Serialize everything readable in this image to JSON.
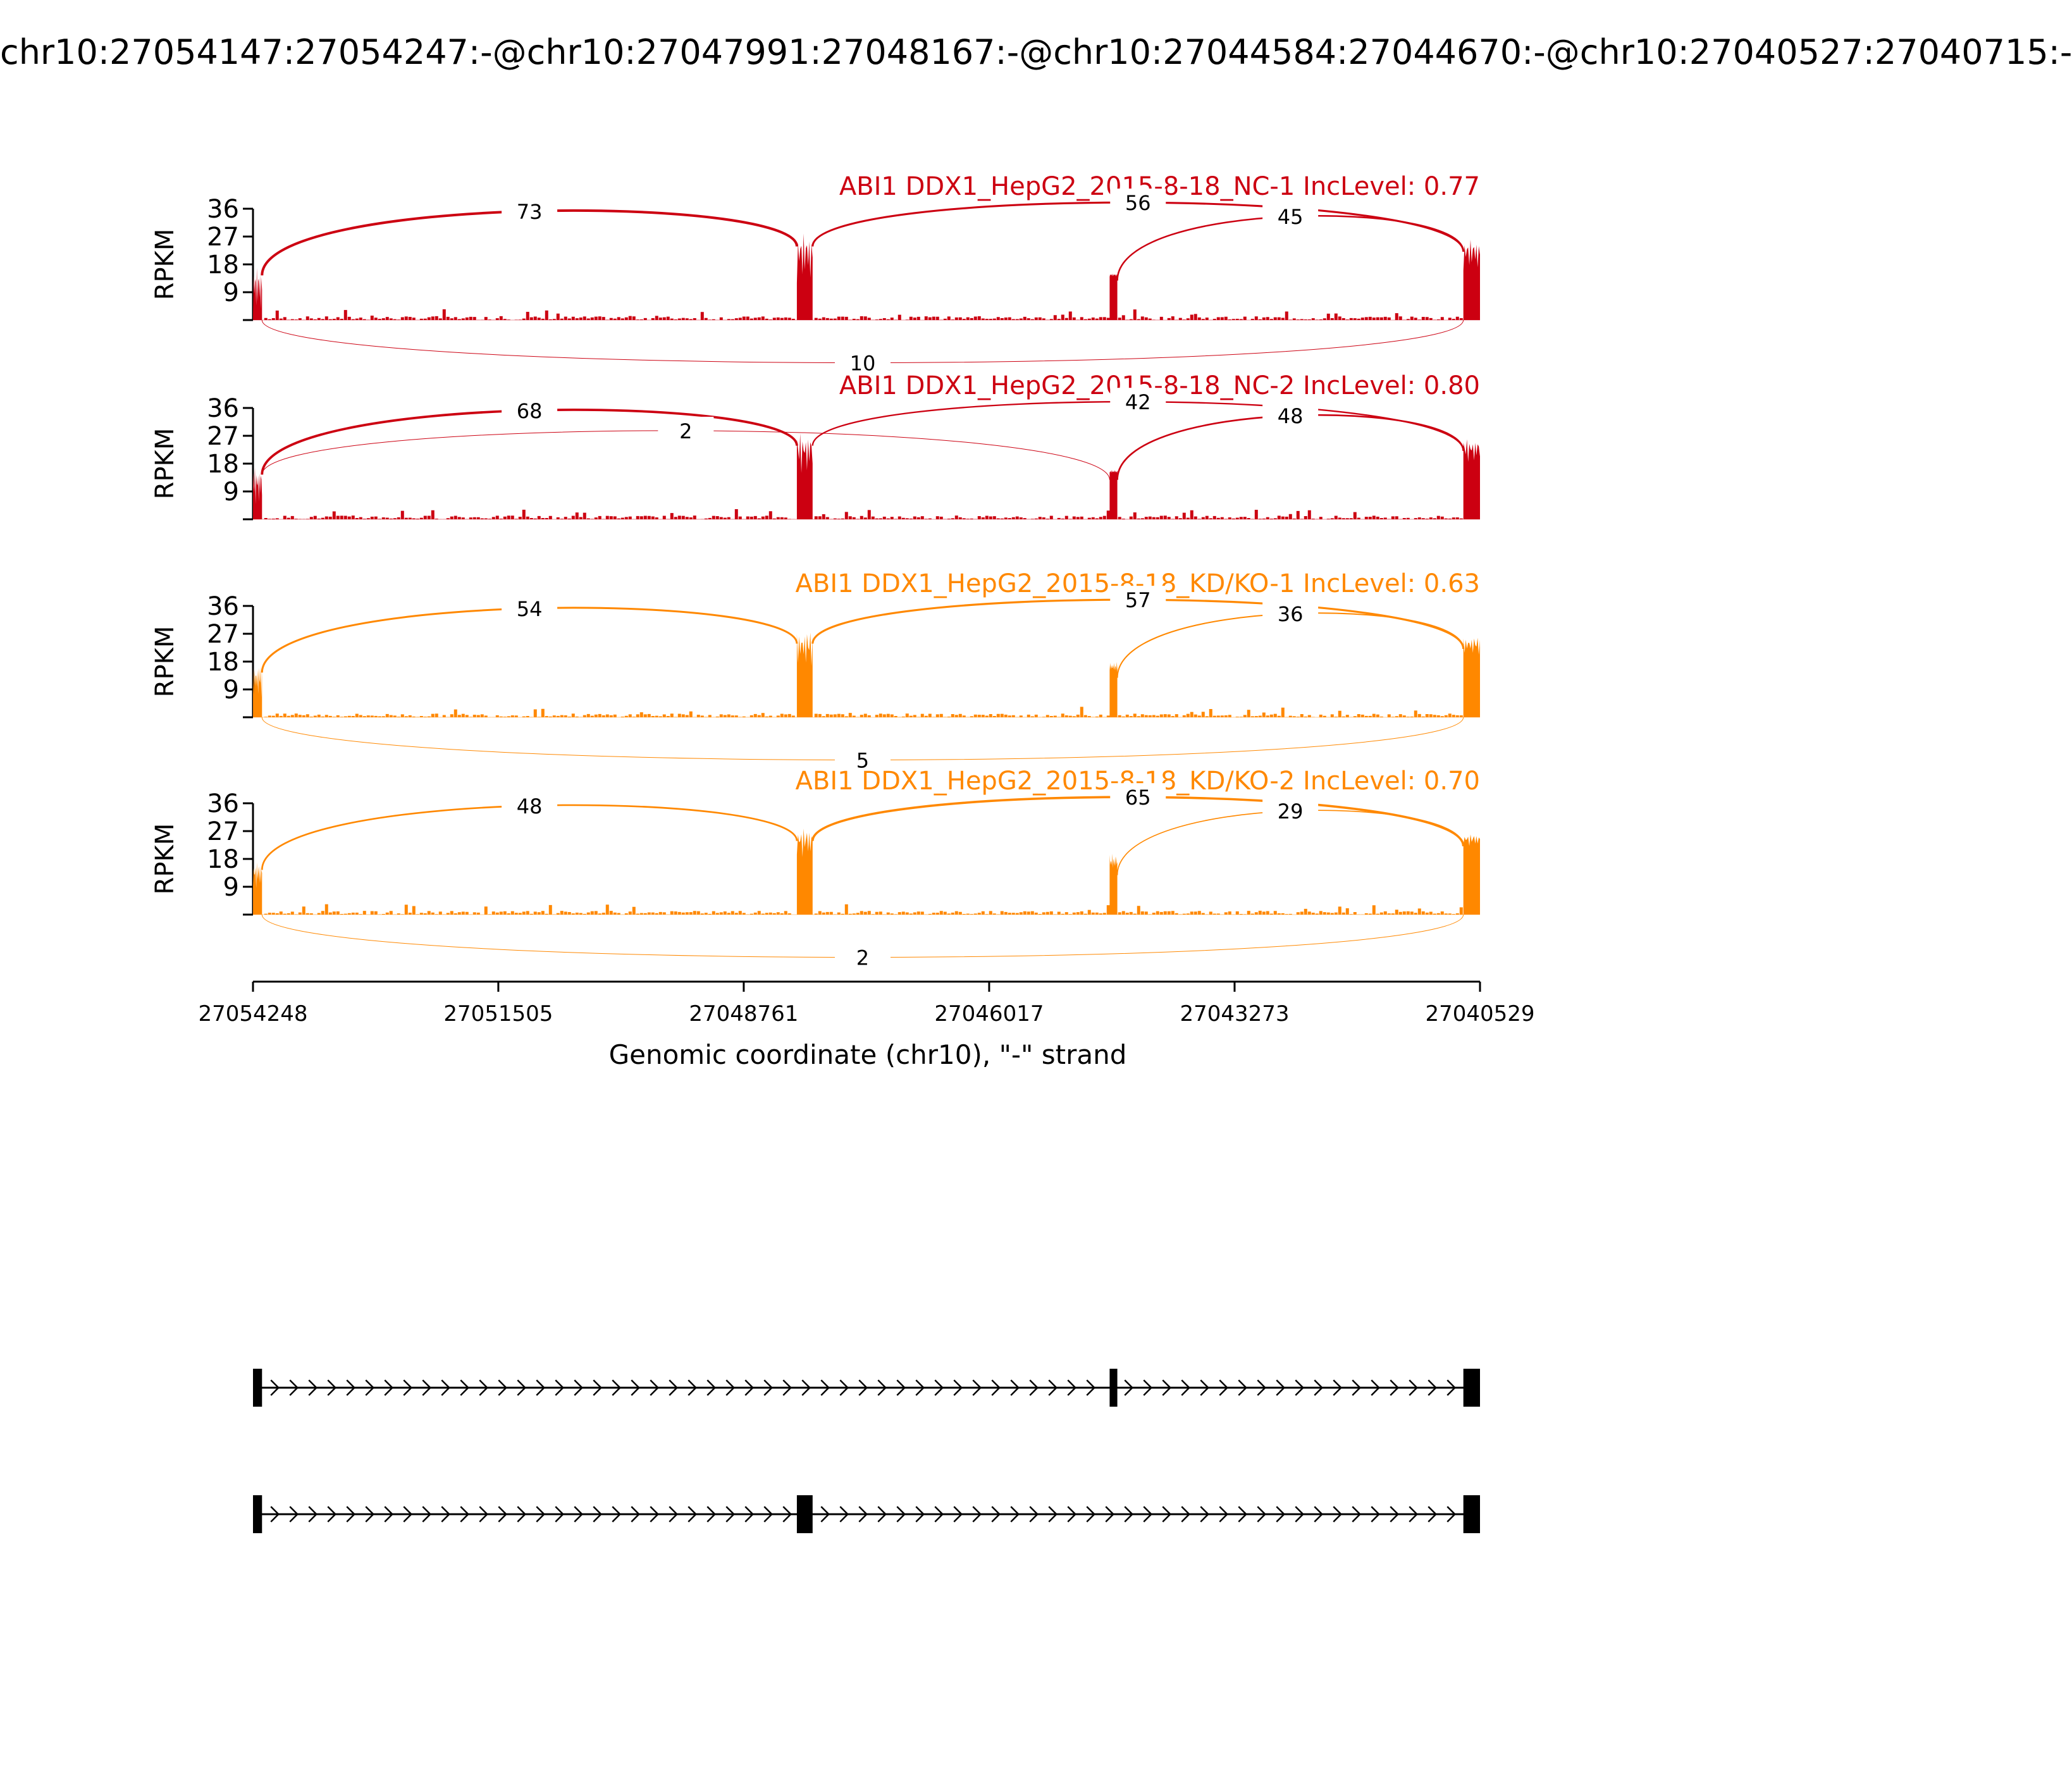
{
  "title": "chr10:27054147:27054247:-@chr10:27047991:27048167:-@chr10:27044584:27044670:-@chr10:27040527:27040715:-",
  "chart_data": {
    "type": "sashimi",
    "ylabel": "RPKM",
    "xlabel": "Genomic coordinate (chr10), \"-\" strand",
    "x_range": [
      27054248,
      27040529
    ],
    "x_ticks": [
      "27054248",
      "27051505",
      "27048761",
      "27046017",
      "27043273",
      "27040529"
    ],
    "y_ticks": [
      "36",
      "27",
      "18",
      "9"
    ],
    "ylim": [
      0,
      36
    ],
    "exons": [
      {
        "start": 27054248,
        "end": 27054147
      },
      {
        "start": 27048167,
        "end": 27047991
      },
      {
        "start": 27044670,
        "end": 27044584
      },
      {
        "start": 27040715,
        "end": 27040529
      }
    ],
    "tracks": [
      {
        "name": "ABI1 DDX1_HepG2_2015-8-18_NC-1 IncLevel: 0.77",
        "color": "#cc0011",
        "junctions": [
          {
            "from": 1,
            "to": 2,
            "count": "73",
            "side": "above"
          },
          {
            "from": 2,
            "to": 4,
            "count": "56",
            "side": "above"
          },
          {
            "from": 3,
            "to": 4,
            "count": "45",
            "side": "above"
          },
          {
            "from": 1,
            "to": 4,
            "count": "10",
            "side": "below"
          }
        ]
      },
      {
        "name": "ABI1 DDX1_HepG2_2015-8-18_NC-2 IncLevel: 0.80",
        "color": "#cc0011",
        "junctions": [
          {
            "from": 1,
            "to": 2,
            "count": "68",
            "side": "above"
          },
          {
            "from": 1,
            "to": 3,
            "count": "2",
            "side": "above"
          },
          {
            "from": 2,
            "to": 4,
            "count": "42",
            "side": "above"
          },
          {
            "from": 3,
            "to": 4,
            "count": "48",
            "side": "above"
          }
        ]
      },
      {
        "name": "ABI1 DDX1_HepG2_2015-8-18_KD/KO-1 IncLevel: 0.63",
        "color": "#ff8800",
        "junctions": [
          {
            "from": 1,
            "to": 2,
            "count": "54",
            "side": "above"
          },
          {
            "from": 2,
            "to": 4,
            "count": "57",
            "side": "above"
          },
          {
            "from": 3,
            "to": 4,
            "count": "36",
            "side": "above"
          },
          {
            "from": 1,
            "to": 4,
            "count": "5",
            "side": "below"
          }
        ]
      },
      {
        "name": "ABI1 DDX1_HepG2_2015-8-18_KD/KO-2 IncLevel: 0.70",
        "color": "#ff8800",
        "junctions": [
          {
            "from": 1,
            "to": 2,
            "count": "48",
            "side": "above"
          },
          {
            "from": 2,
            "to": 4,
            "count": "65",
            "side": "above"
          },
          {
            "from": 3,
            "to": 4,
            "count": "29",
            "side": "above"
          },
          {
            "from": 1,
            "to": 4,
            "count": "2",
            "side": "below"
          }
        ]
      }
    ],
    "isoforms": [
      {
        "exons": [
          1,
          3,
          4
        ]
      },
      {
        "exons": [
          1,
          2,
          4
        ]
      }
    ]
  }
}
